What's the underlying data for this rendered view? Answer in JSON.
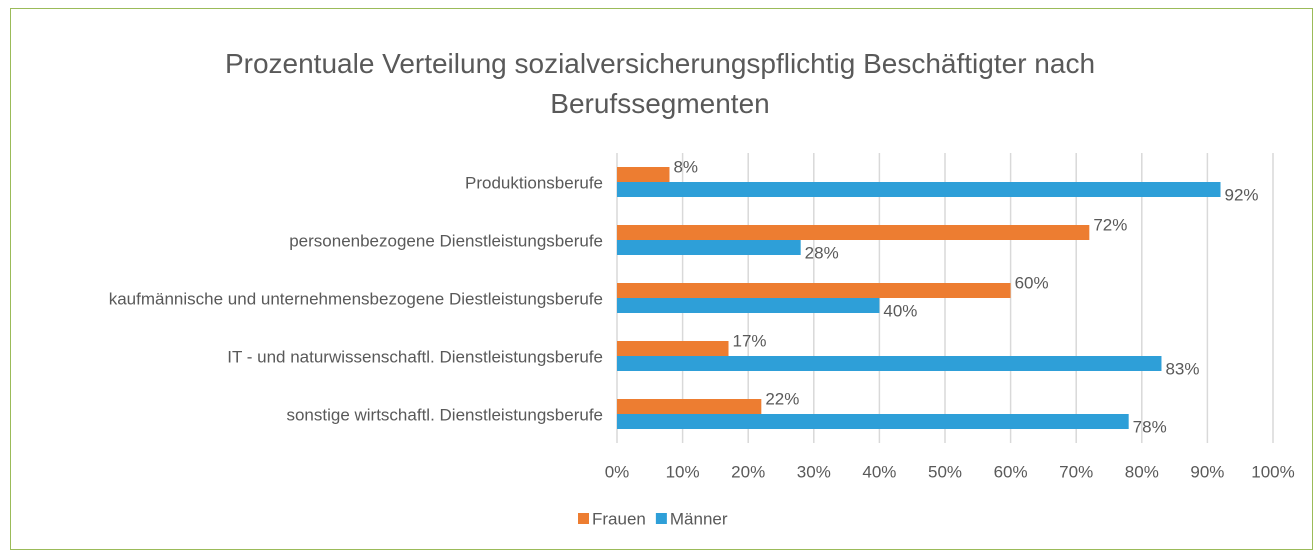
{
  "chart_data": {
    "type": "bar",
    "orientation": "horizontal",
    "title": "Prozentuale Verteilung sozialversicherungspflichtig Beschäftigter nach Berufssegmenten",
    "categories": [
      "Produktionsberufe",
      "personenbezogene Dienstleistungsberufe",
      "kaufmännische und unternehmensbezogene Diestleistungsberufe",
      "IT - und naturwissenschaftl. Dienstleistungsberufe",
      "sonstige wirtschaftl. Dienstleistungsberufe"
    ],
    "series": [
      {
        "name": "Frauen",
        "color": "#ed7d31",
        "values": [
          8,
          72,
          60,
          17,
          22
        ],
        "value_labels": [
          "8%",
          "72%",
          "60%",
          "17%",
          "22%"
        ]
      },
      {
        "name": "Männer",
        "color": "#2e9fd8",
        "values": [
          92,
          28,
          40,
          83,
          78
        ],
        "value_labels": [
          "92%",
          "28%",
          "40%",
          "83%",
          "78%"
        ]
      }
    ],
    "xlim": [
      0,
      100
    ],
    "xticks": [
      {
        "value": 0,
        "label": "0%"
      },
      {
        "value": 10,
        "label": "10%"
      },
      {
        "value": 20,
        "label": "20%"
      },
      {
        "value": 30,
        "label": "30%"
      },
      {
        "value": 40,
        "label": "40%"
      },
      {
        "value": 50,
        "label": "50%"
      },
      {
        "value": 60,
        "label": "60%"
      },
      {
        "value": 70,
        "label": "70%"
      },
      {
        "value": 80,
        "label": "80%"
      },
      {
        "value": 90,
        "label": "90%"
      },
      {
        "value": 100,
        "label": "100%"
      }
    ],
    "grid": true,
    "legend": "bottom"
  }
}
